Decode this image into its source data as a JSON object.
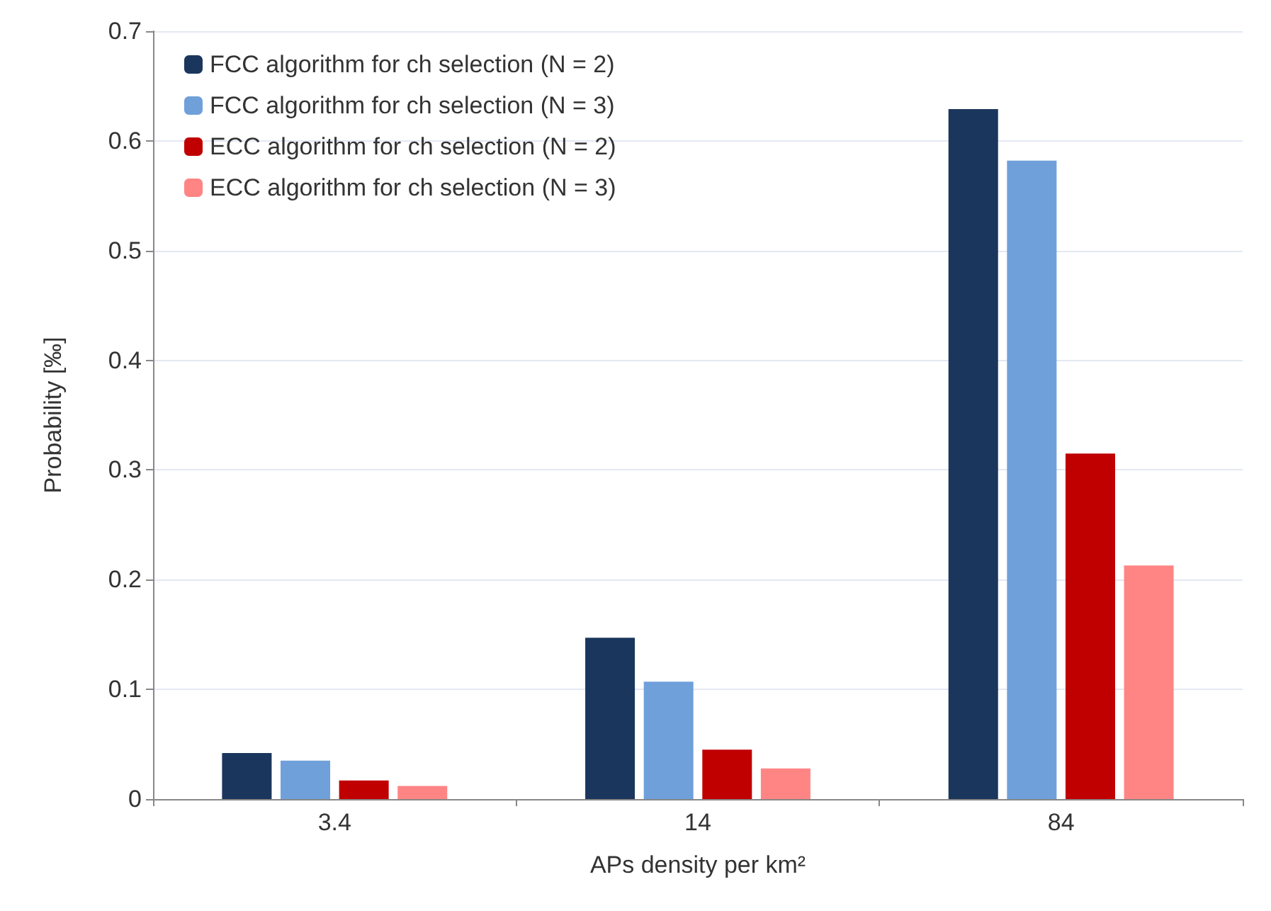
{
  "chart_data": {
    "type": "bar",
    "xlabel": "APs density per km²",
    "ylabel": "Probability [‰]",
    "categories": [
      "3.4",
      "14",
      "84"
    ],
    "series": [
      {
        "name": "FCC algorithm for ch selection (N = 2)",
        "color": "#1b365d",
        "values": [
          0.042,
          0.147,
          0.629
        ]
      },
      {
        "name": "FCC algorithm for ch selection (N = 3)",
        "color": "#6fa0da",
        "values": [
          0.035,
          0.107,
          0.582
        ]
      },
      {
        "name": "ECC algorithm for ch selection (N = 2)",
        "color": "#c00000",
        "values": [
          0.017,
          0.045,
          0.315
        ]
      },
      {
        "name": "ECC algorithm for ch selection (N = 3)",
        "color": "#ff8585",
        "values": [
          0.012,
          0.028,
          0.213
        ]
      }
    ],
    "ylim": [
      0,
      0.7
    ],
    "yticks": [
      0,
      0.1,
      0.2,
      0.3,
      0.4,
      0.5,
      0.6,
      0.7
    ],
    "grid": "y",
    "legend": "top left"
  }
}
